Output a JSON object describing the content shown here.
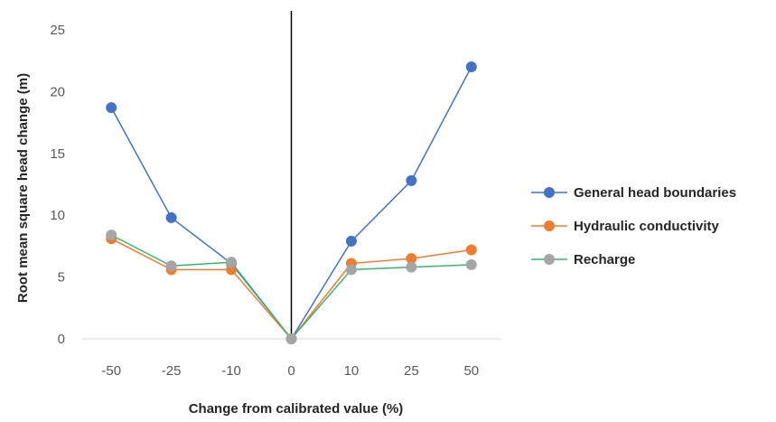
{
  "chart_data": {
    "type": "line",
    "title": "",
    "xlabel": "Change from calibrated value (%)",
    "ylabel": "Root mean square head change (m)",
    "categories": [
      "-50",
      "-25",
      "-10",
      "0",
      "10",
      "25",
      "50"
    ],
    "ylim": [
      0,
      25
    ],
    "yticks": [
      "0",
      "5",
      "10",
      "15",
      "20",
      "25"
    ],
    "grid": false,
    "legend_position": "right",
    "series": [
      {
        "name": "General head boundaries",
        "color": "#4472c4",
        "values": [
          18.7,
          9.8,
          6.1,
          0,
          7.9,
          12.8,
          22.0
        ]
      },
      {
        "name": "Hydraulic conductivity",
        "color": "#ed7d31",
        "values": [
          8.1,
          5.6,
          5.6,
          0,
          6.1,
          6.5,
          7.2
        ]
      },
      {
        "name": "Recharge",
        "color": "#a5a5a5",
        "line_color": "#3cb371",
        "values": [
          8.4,
          5.9,
          6.2,
          0,
          5.6,
          5.8,
          6.0
        ]
      }
    ]
  }
}
